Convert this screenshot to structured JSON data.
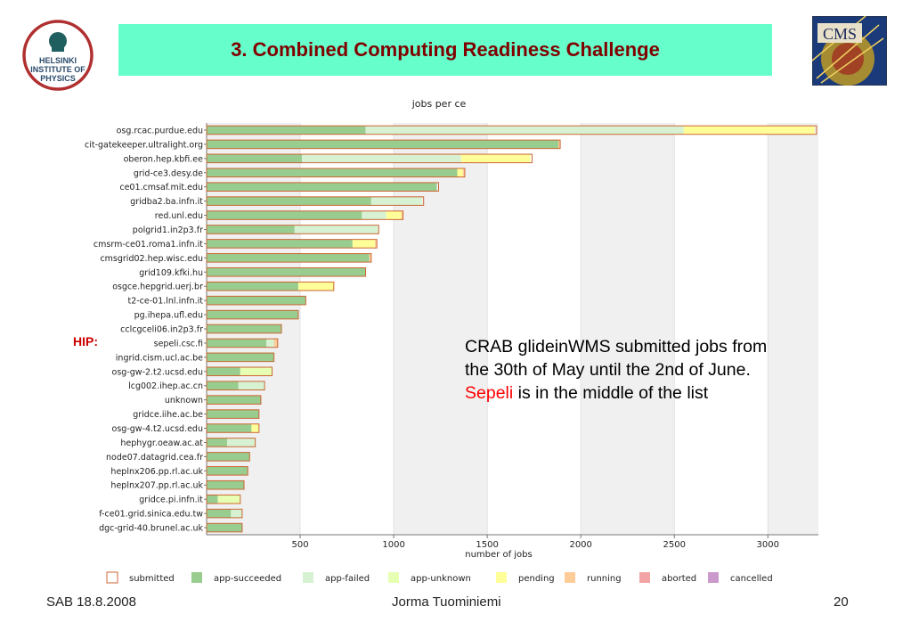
{
  "slide": {
    "title": "3. Combined Computing Readiness Challenge",
    "hip_logo_text": [
      "HELSINKI",
      "INSTITUTE OF",
      "PHYSICS"
    ],
    "cms_logo_text": "CMS",
    "annotation": {
      "line1": "CRAB glideinWMS submitted jobs from",
      "line2": "the 30th of May until the 2nd of June.",
      "highlight": "Sepeli",
      "line3_rest": " is in the middle of the list"
    },
    "hip_label": "HIP:",
    "footer": {
      "left": "SAB 18.8.2008",
      "center": "Jorma Tuominiemi",
      "right": "20"
    },
    "colors": {
      "title_band": "#66ffcc",
      "title_text": "#800000",
      "highlight": "#ff0000"
    }
  },
  "chart_data": {
    "type": "bar",
    "orientation": "horizontal",
    "stacked": true,
    "title": "jobs per ce",
    "xlabel": "number of jobs",
    "xlim": [
      0,
      3270
    ],
    "xticks": [
      500,
      1000,
      1500,
      2000,
      2500,
      3000
    ],
    "grid": true,
    "legend_position": "bottom",
    "categories": [
      "osg.rcac.purdue.edu",
      "cit-gatekeeper.ultralight.org",
      "oberon.hep.kbfi.ee",
      "grid-ce3.desy.de",
      "ce01.cmsaf.mit.edu",
      "gridba2.ba.infn.it",
      "red.unl.edu",
      "polgrid1.in2p3.fr",
      "cmsrm-ce01.roma1.infn.it",
      "cmsgrid02.hep.wisc.edu",
      "grid109.kfki.hu",
      "osgce.hepgrid.uerj.br",
      "t2-ce-01.lnl.infn.it",
      "pg.ihepa.ufl.edu",
      "cclcgceli06.in2p3.fr",
      "sepeli.csc.fi",
      "ingrid.cism.ucl.ac.be",
      "osg-gw-2.t2.ucsd.edu",
      "lcg002.ihep.ac.cn",
      "unknown",
      "gridce.iihe.ac.be",
      "osg-gw-4.t2.ucsd.edu",
      "hephygr.oeaw.ac.at",
      "node07.datagrid.cea.fr",
      "heplnx206.pp.rl.ac.uk",
      "heplnx207.pp.rl.ac.uk",
      "gridce.pi.infn.it",
      "f-ce01.grid.sinica.edu.tw",
      "dgc-grid-40.brunel.ac.uk"
    ],
    "series": [
      {
        "name": "app-succeeded",
        "color": "#99cc8f",
        "values": [
          850,
          1880,
          510,
          1340,
          1230,
          880,
          830,
          470,
          780,
          870,
          850,
          490,
          530,
          490,
          400,
          320,
          360,
          180,
          170,
          290,
          280,
          240,
          110,
          230,
          220,
          200,
          60,
          130,
          190
        ]
      },
      {
        "name": "app-failed",
        "color": "#d6f2d3",
        "values": [
          1700,
          0,
          850,
          0,
          0,
          270,
          130,
          450,
          0,
          0,
          0,
          0,
          0,
          0,
          0,
          40,
          0,
          0,
          140,
          0,
          0,
          0,
          150,
          0,
          0,
          0,
          0,
          60,
          0
        ]
      },
      {
        "name": "app-unknown",
        "color": "#e6ffb3",
        "values": [
          0,
          0,
          0,
          0,
          0,
          0,
          0,
          0,
          0,
          0,
          0,
          0,
          0,
          0,
          0,
          0,
          0,
          170,
          0,
          0,
          0,
          0,
          0,
          0,
          0,
          0,
          120,
          0,
          0
        ]
      },
      {
        "name": "pending",
        "color": "#ffff99",
        "values": [
          700,
          0,
          370,
          30,
          0,
          0,
          80,
          0,
          120,
          0,
          0,
          190,
          0,
          0,
          0,
          0,
          0,
          0,
          0,
          0,
          0,
          40,
          0,
          0,
          0,
          0,
          0,
          0,
          0
        ]
      },
      {
        "name": "running",
        "color": "#ffcc99",
        "values": [
          0,
          10,
          0,
          10,
          0,
          0,
          10,
          0,
          10,
          10,
          0,
          0,
          0,
          0,
          0,
          20,
          0,
          0,
          0,
          0,
          0,
          0,
          0,
          0,
          0,
          0,
          0,
          0,
          0
        ]
      },
      {
        "name": "aborted",
        "color": "#f2a3a3",
        "values": [
          0,
          0,
          0,
          0,
          0,
          0,
          0,
          0,
          0,
          0,
          0,
          0,
          0,
          0,
          0,
          0,
          0,
          0,
          0,
          0,
          0,
          0,
          0,
          0,
          0,
          0,
          0,
          0,
          0
        ]
      },
      {
        "name": "cancelled",
        "color": "#cc99cc",
        "values": [
          0,
          0,
          0,
          0,
          0,
          0,
          0,
          0,
          0,
          0,
          0,
          0,
          0,
          0,
          0,
          0,
          0,
          0,
          0,
          0,
          0,
          0,
          0,
          0,
          0,
          0,
          0,
          0,
          0
        ]
      }
    ],
    "submitted": [
      3260,
      1890,
      1740,
      1380,
      1240,
      1160,
      1050,
      920,
      910,
      880,
      850,
      680,
      530,
      490,
      400,
      380,
      360,
      350,
      310,
      290,
      280,
      280,
      260,
      230,
      220,
      200,
      180,
      190,
      190
    ],
    "legend": [
      "submitted",
      "app-succeeded",
      "app-failed",
      "app-unknown",
      "pending",
      "running",
      "aborted",
      "cancelled"
    ],
    "legend_colors": {
      "submitted": "#ffffff",
      "app-succeeded": "#99cc8f",
      "app-failed": "#d6f2d3",
      "app-unknown": "#e6ffb3",
      "pending": "#ffff99",
      "running": "#ffcc99",
      "aborted": "#f2a3a3",
      "cancelled": "#cc99cc"
    },
    "submitted_outline_color": "#cc6633"
  }
}
